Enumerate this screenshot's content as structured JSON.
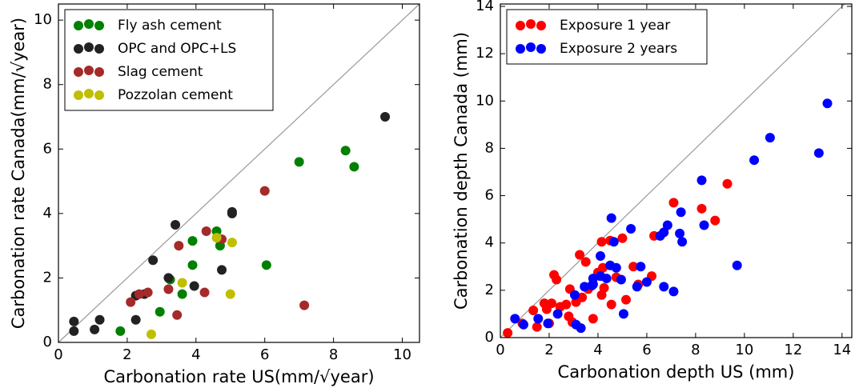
{
  "chart_data": [
    {
      "type": "scatter",
      "xlabel": "Carbonation rate US(mm/√year)",
      "ylabel": "Carbonation rate Canada(mm/√year)",
      "xlim": [
        0,
        10.5
      ],
      "ylim": [
        0,
        10.5
      ],
      "xticks": [
        0,
        2,
        4,
        6,
        8,
        10
      ],
      "yticks": [
        0,
        2,
        4,
        6,
        8,
        10
      ],
      "legend": "upper left",
      "series": [
        {
          "name": "Fly ash cement",
          "color": "#008000",
          "x": [
            1.8,
            2.95,
            3.6,
            3.9,
            3.9,
            4.6,
            4.7,
            6.05,
            7.0,
            8.35,
            8.6,
            3.25
          ],
          "y": [
            0.35,
            0.95,
            1.5,
            3.15,
            2.4,
            3.45,
            3.0,
            2.4,
            5.6,
            5.95,
            5.45,
            1.95
          ]
        },
        {
          "name": "OPC and OPC+LS",
          "color": "#222222",
          "x": [
            0.45,
            0.45,
            1.05,
            1.2,
            2.25,
            2.25,
            2.5,
            2.75,
            3.2,
            3.4,
            3.95,
            4.75,
            5.05,
            5.05,
            9.5
          ],
          "y": [
            0.65,
            0.35,
            0.4,
            0.7,
            0.7,
            1.45,
            1.5,
            2.55,
            2.0,
            3.65,
            1.75,
            2.25,
            4.0,
            4.05,
            7.0
          ]
        },
        {
          "name": "Slag cement",
          "color": "#a52a2a",
          "x": [
            2.1,
            2.35,
            2.6,
            3.2,
            3.5,
            3.45,
            4.25,
            4.3,
            4.75,
            6.0,
            7.15
          ],
          "y": [
            1.25,
            1.5,
            1.55,
            1.65,
            3.0,
            0.85,
            1.55,
            3.45,
            3.2,
            4.7,
            1.15
          ]
        },
        {
          "name": "Pozzolan cement",
          "color": "#bfbf00",
          "x": [
            2.7,
            3.6,
            4.6,
            5.05,
            5.0
          ],
          "y": [
            0.25,
            1.85,
            3.25,
            3.1,
            1.5
          ]
        }
      ]
    },
    {
      "type": "scatter",
      "xlabel": "Carbonation depth US (mm)",
      "ylabel": "Carbonation depth Canada (mm)",
      "xlim": [
        0,
        14.4
      ],
      "ylim": [
        0,
        14.1
      ],
      "xticks": [
        0,
        2,
        4,
        6,
        8,
        10,
        12,
        14
      ],
      "yticks": [
        0,
        2,
        4,
        6,
        8,
        10,
        12,
        14
      ],
      "legend": "upper left",
      "series": [
        {
          "name": "Exposure 1 year",
          "color": "#ff0000",
          "x": [
            0.3,
            0.9,
            1.5,
            1.8,
            1.9,
            2.0,
            2.2,
            2.1,
            2.45,
            2.7,
            2.85,
            2.95,
            3.1,
            3.25,
            3.35,
            3.5,
            3.6,
            3.75,
            3.8,
            4.0,
            4.15,
            4.15,
            4.2,
            4.5,
            4.55,
            4.75,
            5.0,
            5.15,
            5.45,
            5.65,
            6.2,
            6.3,
            7.1,
            8.25,
            8.8,
            9.3,
            1.35,
            2.8,
            2.3,
            4.25
          ],
          "y": [
            0.2,
            0.6,
            0.45,
            1.45,
            1.2,
            0.6,
            2.65,
            1.45,
            1.3,
            1.4,
            2.05,
            0.65,
            1.5,
            3.5,
            1.7,
            3.2,
            2.05,
            2.2,
            0.8,
            2.75,
            4.05,
            1.8,
            2.95,
            4.1,
            1.4,
            2.55,
            4.2,
            1.6,
            3.0,
            2.25,
            2.6,
            4.3,
            5.7,
            5.45,
            4.95,
            6.5,
            1.15,
            0.9,
            2.45,
            2.1
          ]
        },
        {
          "name": "Exposure 2 years",
          "color": "#0000ff",
          "x": [
            0.6,
            0.95,
            1.55,
            1.95,
            2.35,
            3.05,
            3.3,
            3.1,
            3.45,
            3.75,
            3.8,
            4.1,
            4.1,
            4.35,
            4.55,
            4.65,
            4.75,
            4.95,
            5.05,
            5.35,
            5.6,
            5.75,
            6.0,
            6.55,
            6.7,
            6.85,
            6.7,
            7.1,
            7.35,
            7.4,
            7.45,
            8.25,
            8.35,
            9.7,
            10.4,
            11.05,
            13.05,
            13.4,
            4.5,
            3.8
          ],
          "y": [
            0.8,
            0.55,
            0.8,
            0.6,
            1.0,
            1.8,
            0.4,
            0.55,
            2.15,
            2.2,
            2.25,
            2.6,
            3.45,
            2.5,
            5.05,
            4.05,
            2.95,
            2.45,
            1.0,
            4.6,
            2.15,
            3.0,
            2.35,
            4.3,
            4.45,
            4.75,
            2.15,
            1.95,
            4.4,
            5.3,
            4.05,
            6.65,
            4.75,
            3.05,
            7.5,
            8.45,
            7.8,
            9.9,
            3.05,
            2.5
          ]
        }
      ]
    }
  ]
}
